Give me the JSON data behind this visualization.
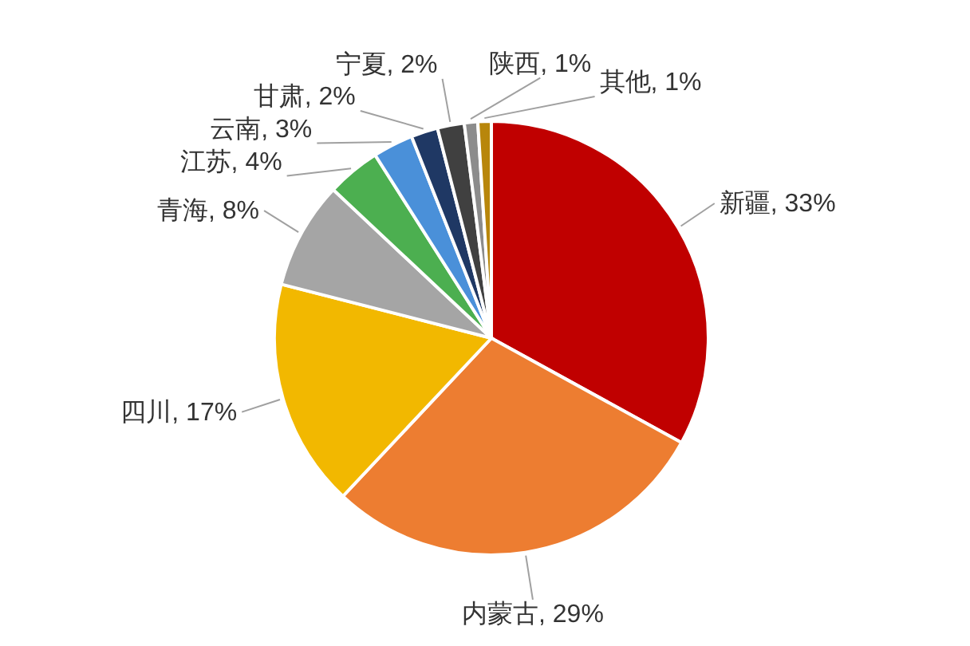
{
  "chart_data": {
    "type": "pie",
    "categories": [
      "新疆",
      "内蒙古",
      "四川",
      "青海",
      "江苏",
      "云南",
      "甘肃",
      "宁夏",
      "陕西",
      "其他"
    ],
    "values": [
      33,
      29,
      17,
      8,
      4,
      3,
      2,
      2,
      1,
      1
    ],
    "colors": [
      "#c00000",
      "#ed7d31",
      "#f2b800",
      "#a5a5a5",
      "#4caf50",
      "#4a90d9",
      "#1f3864",
      "#404040",
      "#8c8c8c",
      "#b8860b"
    ],
    "value_labels": [
      "33%",
      "29%",
      "17%",
      "8%",
      "4%",
      "3%",
      "2%",
      "2%",
      "1%",
      "1%"
    ]
  }
}
